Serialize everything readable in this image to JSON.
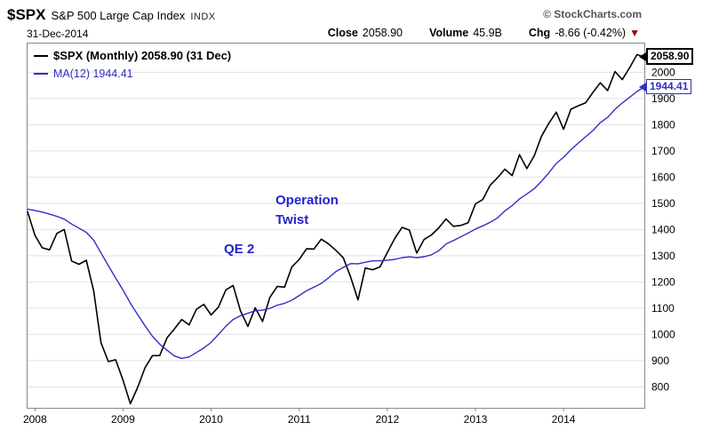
{
  "header": {
    "symbol": "$SPX",
    "name": "S&P 500 Large Cap Index",
    "exchange": "INDX",
    "copyright": "© StockCharts.com",
    "date": "31-Dec-2014",
    "close_label": "Close",
    "close_value": "2058.90",
    "volume_label": "Volume",
    "volume_value": "45.9B",
    "chg_label": "Chg",
    "chg_value": "-8.66 (-0.42%)",
    "chg_direction": "down"
  },
  "icons": {
    "chg_down": "▼"
  },
  "legend": {
    "series1": "$SPX (Monthly) 2058.90 (31 Dec)",
    "series2": "MA(12) 1944.41"
  },
  "annotations": {
    "operation_twist": "Operation Twist",
    "qe2": "QE 2"
  },
  "price_tags": {
    "spx": "2058.90",
    "ma": "1944.41"
  },
  "colors": {
    "spx_line": "#000000",
    "ma_line": "#2f2fc4",
    "annotation": "#2222cc",
    "chg_triangle": "#990000",
    "grid": "#e2e2e2",
    "plot_border": "#888888"
  },
  "chart_data": {
    "type": "line",
    "title": "$SPX S&P 500 Large Cap Index INDX",
    "x_unit": "month",
    "x_start": "Dec-2007",
    "x_end": "Dec-2014",
    "ylim": [
      720,
      2110
    ],
    "y_gridlines": [
      800,
      900,
      1000,
      1100,
      1200,
      1300,
      1400,
      1500,
      1600,
      1700,
      1800,
      1900,
      2000
    ],
    "year_ticks": [
      "2008",
      "2009",
      "2010",
      "2011",
      "2012",
      "2013",
      "2014"
    ],
    "year_tick_indices": [
      1,
      13,
      25,
      37,
      49,
      61,
      73
    ],
    "grid": true,
    "legend_position": "top-left",
    "series": [
      {
        "name": "$SPX (Monthly)",
        "color": "#000000",
        "width": 1.6,
        "values": [
          1468.36,
          1378.55,
          1330.63,
          1322.7,
          1385.59,
          1400.38,
          1280.0,
          1267.38,
          1282.83,
          1166.36,
          968.75,
          896.24,
          903.25,
          825.88,
          735.09,
          797.87,
          872.81,
          919.14,
          919.32,
          987.48,
          1020.62,
          1057.08,
          1036.19,
          1095.63,
          1115.1,
          1073.87,
          1104.49,
          1169.43,
          1186.69,
          1089.41,
          1030.71,
          1101.6,
          1049.33,
          1141.2,
          1183.26,
          1180.55,
          1257.64,
          1286.12,
          1327.22,
          1325.83,
          1363.61,
          1345.2,
          1320.64,
          1292.28,
          1218.89,
          1131.42,
          1253.3,
          1246.96,
          1257.6,
          1312.41,
          1365.68,
          1408.47,
          1397.91,
          1310.33,
          1362.16,
          1379.32,
          1406.58,
          1440.67,
          1412.16,
          1416.18,
          1426.19,
          1498.11,
          1514.68,
          1569.19,
          1597.57,
          1630.74,
          1606.28,
          1685.73,
          1632.97,
          1681.55,
          1756.54,
          1805.81,
          1848.36,
          1782.59,
          1859.45,
          1872.34,
          1883.95,
          1923.57,
          1960.23,
          1930.67,
          2003.37,
          1972.29,
          2018.05,
          2067.56,
          2058.9
        ]
      },
      {
        "name": "MA(12)",
        "color": "#2f2fc4",
        "width": 1.4,
        "values": [
          1478.1,
          1473.12,
          1466.77,
          1458.59,
          1450.53,
          1439.67,
          1421.06,
          1405.4,
          1389.47,
          1359.44,
          1311.06,
          1262.31,
          1215.22,
          1169.17,
          1119.54,
          1075.8,
          1033.07,
          992.97,
          962.91,
          939.59,
          917.73,
          908.63,
          914.25,
          930.86,
          948.52,
          969.18,
          999.97,
          1030.93,
          1057.09,
          1071.28,
          1080.56,
          1090.07,
          1092.46,
          1099.47,
          1111.73,
          1118.8,
          1130.68,
          1148.37,
          1166.93,
          1179.96,
          1194.71,
          1216.02,
          1240.18,
          1256.07,
          1270.2,
          1269.39,
          1275.23,
          1280.76,
          1280.76,
          1282.95,
          1286.15,
          1293.04,
          1295.9,
          1292.99,
          1296.45,
          1303.7,
          1319.35,
          1345.12,
          1358.35,
          1372.46,
          1386.51,
          1401.98,
          1414.4,
          1427.79,
          1444.43,
          1471.13,
          1491.47,
          1517.01,
          1535.87,
          1555.95,
          1584.64,
          1617.11,
          1652.29,
          1676.0,
          1704.73,
          1730.0,
          1753.86,
          1778.26,
          1807.76,
          1828.17,
          1859.04,
          1883.26,
          1905.06,
          1926.87,
          1944.41
        ]
      }
    ]
  }
}
